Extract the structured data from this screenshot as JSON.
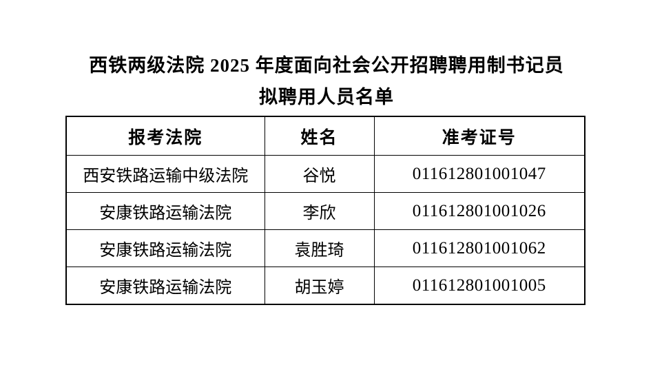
{
  "document": {
    "title_line1": "西铁两级法院 2025 年度面向社会公开招聘聘用制书记员",
    "title_line2": "拟聘用人员名单"
  },
  "table": {
    "columns": [
      "报考法院",
      "姓名",
      "准考证号"
    ],
    "rows": [
      {
        "court": "西安铁路运输中级法院",
        "name": "谷悦",
        "ticket_no": "011612801001047"
      },
      {
        "court": "安康铁路运输法院",
        "name": "李欣",
        "ticket_no": "011612801001026"
      },
      {
        "court": "安康铁路运输法院",
        "name": "袁胜琦",
        "ticket_no": "011612801001062"
      },
      {
        "court": "安康铁路运输法院",
        "name": "胡玉婷",
        "ticket_no": "011612801001005"
      }
    ]
  },
  "colors": {
    "text": "#000000",
    "border": "#000000",
    "background": "#ffffff"
  }
}
